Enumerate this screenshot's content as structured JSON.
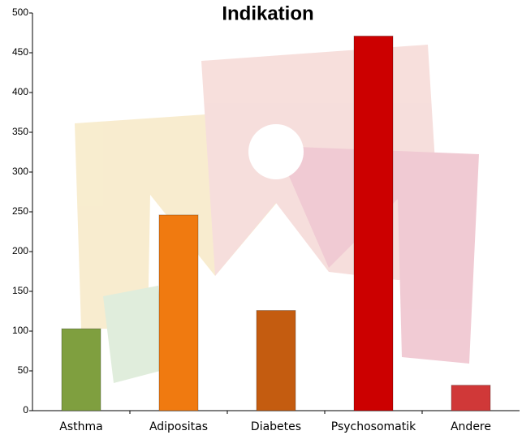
{
  "chart_data": {
    "type": "bar",
    "title": "Indikation",
    "categories": [
      "Asthma",
      "Adipositas",
      "Diabetes",
      "Psychosomatik",
      "Andere"
    ],
    "values": [
      103,
      246,
      126,
      471,
      32
    ],
    "colors": [
      "#7f9f3f",
      "#f07a10",
      "#c45c10",
      "#cc0000",
      "#d03838"
    ],
    "ylim": [
      0,
      500
    ],
    "yticks": [
      0,
      50,
      100,
      150,
      200,
      250,
      300,
      350,
      400,
      450,
      500
    ]
  }
}
